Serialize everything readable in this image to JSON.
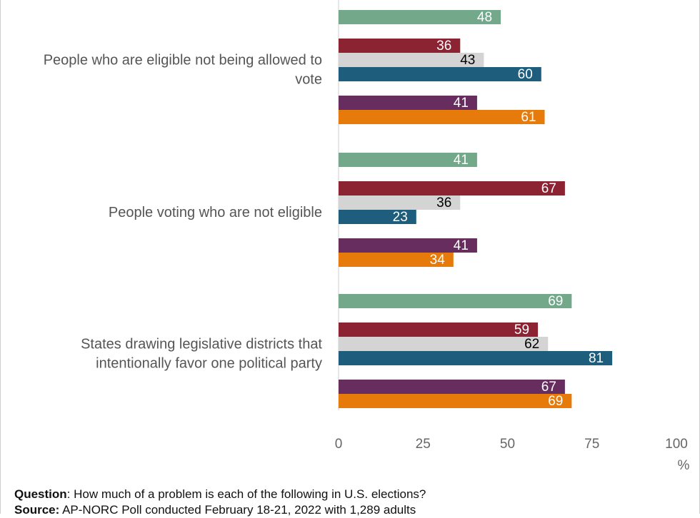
{
  "chart_data": {
    "type": "bar",
    "orientation": "horizontal",
    "categories": [
      "People who are eligible not being allowed to vote",
      "People voting who are not eligible",
      "States drawing legislative districts that intentionally favor one political party"
    ],
    "category_lines": [
      [
        "People who are eligible not being allowed to",
        "vote"
      ],
      [
        "People voting who are not eligible"
      ],
      [
        "States drawing legislative districts that",
        "intentionally favor one political party"
      ]
    ],
    "series": [
      {
        "values": [
          48,
          41,
          69
        ],
        "color": "#73a88a",
        "label_color": "#ffffff"
      },
      {
        "values": [
          36,
          67,
          59
        ],
        "color": "#8b2332",
        "label_color": "#ffffff"
      },
      {
        "values": [
          43,
          36,
          62
        ],
        "color": "#d4d4d4",
        "label_color": "#000000"
      },
      {
        "values": [
          60,
          23,
          81
        ],
        "color": "#1e5d7c",
        "label_color": "#ffffff"
      },
      {
        "values": [
          41,
          41,
          67
        ],
        "color": "#662d5e",
        "label_color": "#ffffff"
      },
      {
        "values": [
          61,
          34,
          69
        ],
        "color": "#e67a0a",
        "label_color": "#ffffff"
      }
    ],
    "xlim": [
      0,
      100
    ],
    "xticks": [
      0,
      25,
      50,
      75,
      100
    ],
    "x_unit": "%",
    "grid": false,
    "data_labels": true
  },
  "footer": {
    "question_label": "Question",
    "question_text": ": How much of a problem is each of the following in U.S. elections?",
    "source_label": "Source:",
    "source_text": " AP-NORC Poll conducted February 18-21, 2022 with 1,289 adults"
  }
}
